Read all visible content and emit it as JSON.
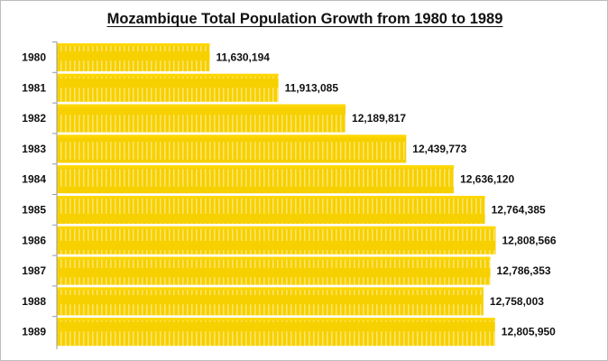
{
  "chart_data": {
    "type": "bar",
    "orientation": "horizontal",
    "title": "Mozambique Total Population Growth from 1980 to 1989",
    "categories": [
      "1980",
      "1981",
      "1982",
      "1983",
      "1984",
      "1985",
      "1986",
      "1987",
      "1988",
      "1989"
    ],
    "values": [
      11630194,
      11913085,
      12189817,
      12439773,
      12636120,
      12764385,
      12808566,
      12786353,
      12758003,
      12805950
    ],
    "value_labels": [
      "11,630,194",
      "11,913,085",
      "12,189,817",
      "12,439,773",
      "12,636,120",
      "12,764,385",
      "12,808,566",
      "12,786,353",
      "12,758,003",
      "12,805,950"
    ],
    "xlim": [
      11000000,
      13000000
    ],
    "xlabel": "",
    "ylabel": "",
    "grid": false,
    "legend": "none",
    "bar_color": "#FFD700"
  }
}
